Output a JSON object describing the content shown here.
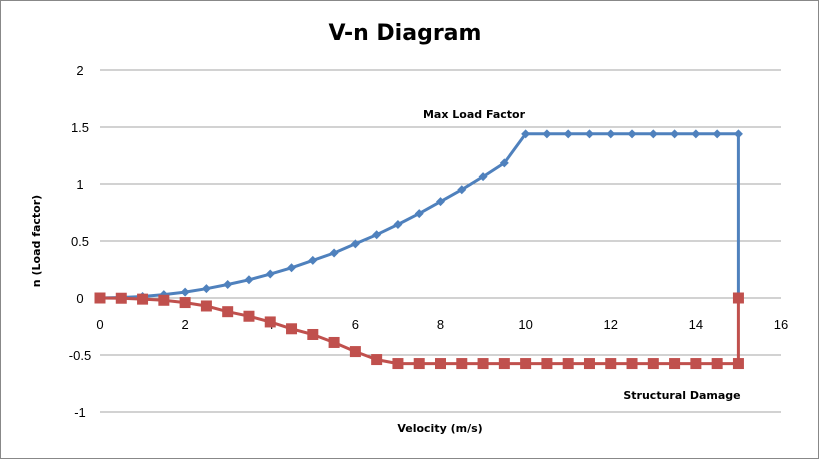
{
  "chart_data": {
    "type": "line",
    "title": "V-n Diagram",
    "xlabel": "Velocity (m/s)",
    "ylabel": "n (Load  factor)",
    "xlim": [
      0,
      16
    ],
    "ylim": [
      -1,
      2
    ],
    "x_ticks": [
      "0",
      "2",
      "4",
      "6",
      "8",
      "10",
      "12",
      "14",
      "16"
    ],
    "y_ticks": [
      "2",
      "1.5",
      "1",
      "0.5",
      "0",
      "-0.5",
      "-1"
    ],
    "grid": true,
    "legend": "none",
    "annotations": [
      {
        "text": "Max Load Factor",
        "series": "positive"
      },
      {
        "text": "Structural Damage",
        "series": "negative"
      }
    ],
    "series": [
      {
        "key": "positive",
        "color": "#4F81BD",
        "marker": "diamond",
        "x": [
          0,
          0.5,
          1,
          1.5,
          2,
          2.5,
          3,
          3.5,
          4,
          4.5,
          5,
          5.5,
          6,
          6.5,
          7,
          7.5,
          8,
          8.5,
          9,
          9.5,
          10,
          10.5,
          11,
          11.5,
          12,
          12.5,
          13,
          13.5,
          14,
          14.5,
          15,
          15
        ],
        "y": [
          0,
          0.004,
          0.013,
          0.03,
          0.052,
          0.082,
          0.118,
          0.16,
          0.21,
          0.265,
          0.33,
          0.395,
          0.475,
          0.555,
          0.645,
          0.74,
          0.845,
          0.95,
          1.065,
          1.185,
          1.44,
          1.44,
          1.44,
          1.44,
          1.44,
          1.44,
          1.44,
          1.44,
          1.44,
          1.44,
          1.44,
          0
        ]
      },
      {
        "key": "negative",
        "color": "#C0504D",
        "marker": "square",
        "x": [
          0,
          0.5,
          1,
          1.5,
          2,
          2.5,
          3,
          3.5,
          4,
          4.5,
          5,
          5.5,
          6,
          6.5,
          7,
          7.5,
          8,
          8.5,
          9,
          9.5,
          10,
          10.5,
          11,
          11.5,
          12,
          12.5,
          13,
          13.5,
          14,
          14.5,
          15,
          15
        ],
        "y": [
          0,
          -0.002,
          -0.01,
          -0.02,
          -0.04,
          -0.07,
          -0.12,
          -0.16,
          -0.21,
          -0.27,
          -0.32,
          -0.39,
          -0.47,
          -0.54,
          -0.575,
          -0.575,
          -0.575,
          -0.575,
          -0.575,
          -0.575,
          -0.575,
          -0.575,
          -0.575,
          -0.575,
          -0.575,
          -0.575,
          -0.575,
          -0.575,
          -0.575,
          -0.575,
          -0.575,
          0
        ]
      }
    ]
  }
}
